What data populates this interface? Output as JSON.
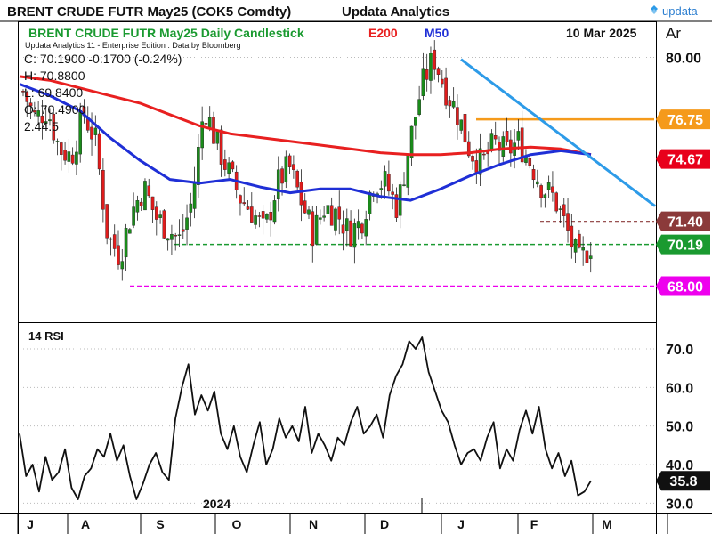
{
  "header": {
    "title": "BRENT CRUDE FUTR  May25 (COK5 Comdty)",
    "vendor": "Updata Analytics",
    "brand": "updata",
    "date": "10 Mar 2025",
    "corner": "Ar"
  },
  "legend": {
    "name": "BRENT CRUDE FUTR  May25 Daily Candlestick",
    "e200": "E200",
    "m50": "M50",
    "edition": "Updata Analytics 11 - Enterprise Edition : Data by Bloomberg",
    "close": "C: 70.1900  -0.1700 (-0.24%)",
    "high": "H: 70.8800",
    "low": "L: 69.8400",
    "open": "O: 70.4900",
    "partial": "2.44.5"
  },
  "colors": {
    "candle_up": "#1a8c1a",
    "candle_down": "#e01c1c",
    "e200": "#e82020",
    "m50": "#1f2fd6",
    "trendline": "#2d9be8",
    "orange": "#f59a1b",
    "red_badge": "#e8001b",
    "brown": "#8b3a3a",
    "green_badge": "#1a9a30",
    "magenta": "#ee00ee",
    "rsi": "#111111"
  },
  "chart_data": [
    {
      "type": "candlestick",
      "ylim": [
        66.2,
        81.8
      ],
      "yticks": [
        80.0
      ],
      "x_labels": [
        "J",
        "A",
        "S",
        "O",
        "N",
        "D",
        "J",
        "F",
        "M"
      ],
      "year_label": "2024",
      "series": [
        {
          "name": "E200",
          "values": [
            79.0,
            78.8,
            78.4,
            78.0,
            77.6,
            77.0,
            76.4,
            76.0,
            75.8,
            75.6,
            75.4,
            75.2,
            75.0,
            74.9,
            74.9,
            75.0,
            75.2,
            75.3,
            75.2,
            74.9
          ]
        },
        {
          "name": "M50",
          "values": [
            78.6,
            78.0,
            77.2,
            75.8,
            74.6,
            73.6,
            73.4,
            73.6,
            73.2,
            72.9,
            73.1,
            73.1,
            72.7,
            72.5,
            73.1,
            73.8,
            74.4,
            74.9,
            75.1,
            74.9
          ]
        }
      ],
      "candles_close": [
        78.2,
        76.8,
        77.3,
        75.2,
        74.8,
        77.1,
        75.6,
        70.6,
        69.6,
        71.9,
        73.2,
        71.6,
        71.0,
        70.4,
        72.5,
        77.5,
        75.5,
        74.0,
        72.6,
        71.9,
        70.8,
        73.3,
        74.3,
        72.5,
        70.8,
        72.2,
        71.8,
        70.8,
        71.4,
        73.5,
        73.4,
        72.1,
        75.5,
        78.5,
        80.0,
        78.3,
        77.0,
        75.1,
        74.4,
        75.5,
        75.0,
        75.6,
        74.5,
        73.2,
        72.6,
        71.0,
        69.2,
        70.19
      ],
      "levels": [
        {
          "value": 76.75,
          "label": "76.75"
        },
        {
          "value": 74.67,
          "label": "74.67"
        },
        {
          "value": 71.4,
          "label": "71.40"
        },
        {
          "value": 70.19,
          "label": "70.19"
        },
        {
          "value": 68.0,
          "label": "68.00"
        }
      ],
      "trendline": {
        "from_value": 79.9,
        "to_value": 72.2
      }
    },
    {
      "type": "line",
      "title": "14 RSI",
      "ylim": [
        28,
        76
      ],
      "yticks": [
        {
          "value": 70,
          "label": "70.0"
        },
        {
          "value": 60,
          "label": "60.0"
        },
        {
          "value": 50,
          "label": "50.0"
        },
        {
          "value": 40,
          "label": "40.0"
        },
        {
          "value": 30,
          "label": "30.0"
        }
      ],
      "last": {
        "value": 35.8,
        "label": "35.8"
      },
      "values": [
        48,
        37,
        40,
        33,
        42,
        36,
        38,
        44,
        34,
        31,
        37,
        39,
        44,
        42,
        48,
        41,
        45,
        37,
        31,
        35,
        40,
        43,
        38,
        36,
        52,
        60,
        66,
        53,
        58,
        54,
        59,
        48,
        44,
        50,
        42,
        38,
        45,
        51,
        40,
        44,
        52,
        47,
        50,
        46,
        55,
        43,
        48,
        45,
        41,
        47,
        45,
        51,
        55,
        48,
        50,
        53,
        47,
        58,
        63,
        66,
        72,
        70,
        73,
        64,
        59,
        54,
        51,
        45,
        40,
        43,
        44,
        41,
        47,
        51,
        39,
        44,
        41,
        49,
        54,
        48,
        55,
        44,
        39,
        43,
        37,
        41,
        32,
        33,
        35.8
      ]
    }
  ]
}
